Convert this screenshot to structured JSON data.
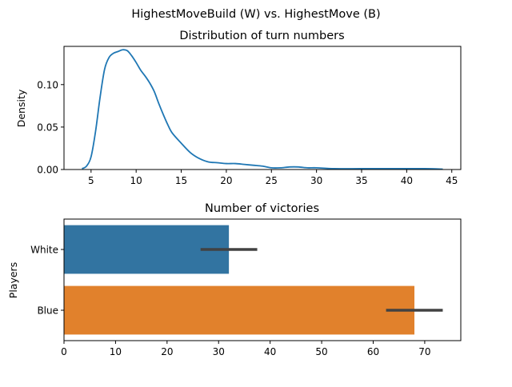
{
  "suptitle": "HighestMoveBuild (W) vs. HighestMove (B)",
  "chart_data": [
    {
      "type": "line",
      "title": "Distribution of turn numbers",
      "xlabel": "",
      "ylabel": "Density",
      "xlim": [
        2.0,
        46.0
      ],
      "ylim": [
        0,
        0.145
      ],
      "xticks": [
        5,
        10,
        15,
        20,
        25,
        30,
        35,
        40,
        45
      ],
      "yticks": [
        0.0,
        0.05,
        0.1
      ],
      "ytick_labels": [
        "0.00",
        "0.05",
        "0.10"
      ],
      "grid": false,
      "series": [
        {
          "color": "#1f77b4",
          "x": [
            4.0,
            4.5,
            5.0,
            5.5,
            6.0,
            6.5,
            7.0,
            7.5,
            8.0,
            8.5,
            9.0,
            9.5,
            10.0,
            10.5,
            11.0,
            11.5,
            12.0,
            12.5,
            13.0,
            13.5,
            14.0,
            15.0,
            16.0,
            17.0,
            18.0,
            19.0,
            20.0,
            21.0,
            22.0,
            23.0,
            24.0,
            25.0,
            26.0,
            27.0,
            28.0,
            29.0,
            30.0,
            32.0,
            35.0,
            38.0,
            40.0,
            42.0,
            44.0
          ],
          "y": [
            0.001,
            0.004,
            0.015,
            0.045,
            0.085,
            0.118,
            0.132,
            0.137,
            0.139,
            0.141,
            0.14,
            0.134,
            0.126,
            0.117,
            0.11,
            0.102,
            0.092,
            0.078,
            0.065,
            0.053,
            0.043,
            0.031,
            0.02,
            0.013,
            0.009,
            0.008,
            0.007,
            0.007,
            0.006,
            0.005,
            0.004,
            0.002,
            0.002,
            0.003,
            0.003,
            0.002,
            0.002,
            0.001,
            0.001,
            0.001,
            0.001,
            0.001,
            0.0005
          ]
        }
      ]
    },
    {
      "type": "bar",
      "orientation": "horizontal",
      "title": "Number of victories",
      "xlabel": "",
      "ylabel": "Players",
      "xlim": [
        0,
        77
      ],
      "xticks": [
        0,
        10,
        20,
        30,
        40,
        50,
        60,
        70
      ],
      "categories": [
        "White",
        "Blue"
      ],
      "values": [
        32,
        68
      ],
      "error_low": [
        26.5,
        62.5
      ],
      "error_high": [
        37.5,
        73.5
      ],
      "colors": [
        "#3274a1",
        "#e1812c"
      ],
      "errorbar_color": "#424242",
      "grid": false
    }
  ]
}
